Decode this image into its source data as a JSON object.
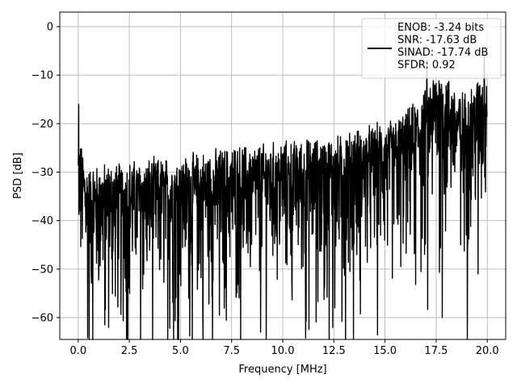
{
  "chart_data": {
    "type": "line",
    "title": "",
    "xlabel": "Frequency [MHz]",
    "ylabel": "PSD [dB]",
    "xlim": [
      -0.9,
      20.9
    ],
    "ylim": [
      -64.5,
      3.0
    ],
    "xticks": [
      0.0,
      2.5,
      5.0,
      7.5,
      10.0,
      12.5,
      15.0,
      17.5,
      20.0
    ],
    "xtick_labels": [
      "0.0",
      "2.5",
      "5.0",
      "7.5",
      "10.0",
      "12.5",
      "15.0",
      "17.5",
      "20.0"
    ],
    "yticks": [
      0,
      -10,
      -20,
      -30,
      -40,
      -50,
      -60
    ],
    "ytick_labels": [
      "0",
      "−10",
      "−20",
      "−30",
      "−40",
      "−50",
      "−60"
    ],
    "grid": true,
    "legend_position": "top-right",
    "legend": {
      "lines": [
        "ENOB: -3.24 bits",
        "SNR: -17.63 dB",
        "SINAD: -17.74 dB",
        "SFDR: 0.92"
      ]
    },
    "series": [
      {
        "color": "#000000",
        "x_range": [
          0.0,
          20.0
        ],
        "n_points": 1600,
        "baseline_x": [
          0.0,
          0.5,
          2.5,
          5.0,
          7.5,
          10.0,
          12.5,
          14.0,
          15.0,
          16.0,
          17.0,
          17.5,
          18.0,
          18.5,
          19.0,
          19.5,
          20.0
        ],
        "baseline_db": [
          -29.0,
          -35.0,
          -34.0,
          -33.0,
          -31.0,
          -30.0,
          -29.0,
          -27.0,
          -26.0,
          -24.0,
          -19.0,
          -15.0,
          -16.0,
          -19.0,
          -20.0,
          -17.0,
          -14.0
        ],
        "notable_points": [
          {
            "x": 0.02,
            "y": -16.0
          },
          {
            "x": 1.3,
            "y": -61.5
          },
          {
            "x": 6.9,
            "y": -59.5
          },
          {
            "x": 12.55,
            "y": -58.0
          },
          {
            "x": 12.9,
            "y": -60.8
          },
          {
            "x": 17.8,
            "y": -60.0
          },
          {
            "x": 17.05,
            "y": -7.0
          },
          {
            "x": 19.85,
            "y": -6.0
          },
          {
            "x": 18.7,
            "y": -45.0
          },
          {
            "x": 19.55,
            "y": -51.0
          }
        ]
      }
    ]
  }
}
